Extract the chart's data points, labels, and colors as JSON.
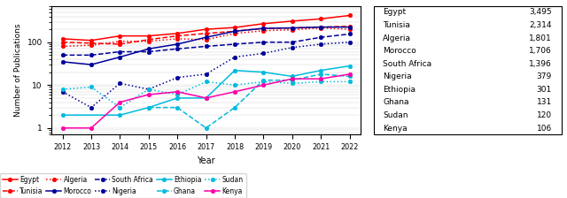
{
  "years": [
    2012,
    2013,
    2014,
    2015,
    2016,
    2017,
    2018,
    2019,
    2020,
    2021,
    2022
  ],
  "series": [
    {
      "name": "Egypt",
      "color": "#FF0000",
      "linestyle": "-",
      "marker": "o",
      "data": [
        120,
        110,
        140,
        140,
        160,
        200,
        220,
        270,
        310,
        350,
        420
      ]
    },
    {
      "name": "Tunisia",
      "color": "#FF0000",
      "linestyle": "--",
      "marker": "o",
      "data": [
        100,
        95,
        90,
        115,
        140,
        160,
        180,
        210,
        215,
        225,
        235
      ]
    },
    {
      "name": "Algeria",
      "color": "#FF0000",
      "linestyle": ":",
      "marker": "o",
      "data": [
        80,
        85,
        105,
        105,
        120,
        115,
        160,
        185,
        195,
        215,
        200
      ]
    },
    {
      "name": "Morocco",
      "color": "#000099",
      "linestyle": "-",
      "marker": "o",
      "data": [
        35,
        30,
        45,
        70,
        90,
        130,
        180,
        210,
        215,
        225,
        225
      ]
    },
    {
      "name": "South Africa",
      "color": "#000099",
      "linestyle": "--",
      "marker": "o",
      "data": [
        50,
        50,
        60,
        60,
        70,
        80,
        90,
        100,
        100,
        130,
        155
      ]
    },
    {
      "name": "Nigeria",
      "color": "#000099",
      "linestyle": ":",
      "marker": "o",
      "data": [
        7,
        3,
        11,
        8,
        15,
        18,
        45,
        55,
        75,
        90,
        100
      ]
    },
    {
      "name": "Ethiopia",
      "color": "#00BBDD",
      "linestyle": "-",
      "marker": "o",
      "data": [
        2,
        null,
        2,
        3,
        5,
        5,
        22,
        20,
        16,
        22,
        28
      ]
    },
    {
      "name": "Ghana",
      "color": "#00BBDD",
      "linestyle": "--",
      "marker": "o",
      "data": [
        null,
        null,
        null,
        3,
        3,
        1,
        3,
        13,
        13,
        18,
        16
      ]
    },
    {
      "name": "Sudan",
      "color": "#00BBDD",
      "linestyle": ":",
      "marker": "o",
      "data": [
        8,
        9,
        3,
        8,
        6,
        12,
        10,
        12,
        11,
        12,
        12
      ]
    },
    {
      "name": "Kenya",
      "color": "#FF00AA",
      "linestyle": "-",
      "marker": "o",
      "data": [
        1,
        1,
        4,
        6,
        7,
        5,
        7,
        10,
        14,
        14,
        18
      ]
    }
  ],
  "totals": [
    [
      "Egypt",
      "3,495"
    ],
    [
      "Tunisia",
      "2,314"
    ],
    [
      "Algeria",
      "1,801"
    ],
    [
      "Morocco",
      "1,706"
    ],
    [
      "South Africa",
      "1,396"
    ],
    [
      "Nigeria",
      "379"
    ],
    [
      "Ethiopia",
      "301"
    ],
    [
      "Ghana",
      "131"
    ],
    [
      "Sudan",
      "120"
    ],
    [
      "Kenya",
      "106"
    ]
  ],
  "ylabel": "Number of Publications",
  "xlabel": "Year",
  "ylim": [
    0.7,
    700
  ],
  "legend_row1": [
    "Egypt",
    "Tunisia",
    "Algeria",
    "Morocco",
    "South Africa"
  ],
  "legend_row2": [
    "Nigeria",
    "Ethiopia",
    "Ghana",
    "Sudan",
    "Kenya"
  ]
}
